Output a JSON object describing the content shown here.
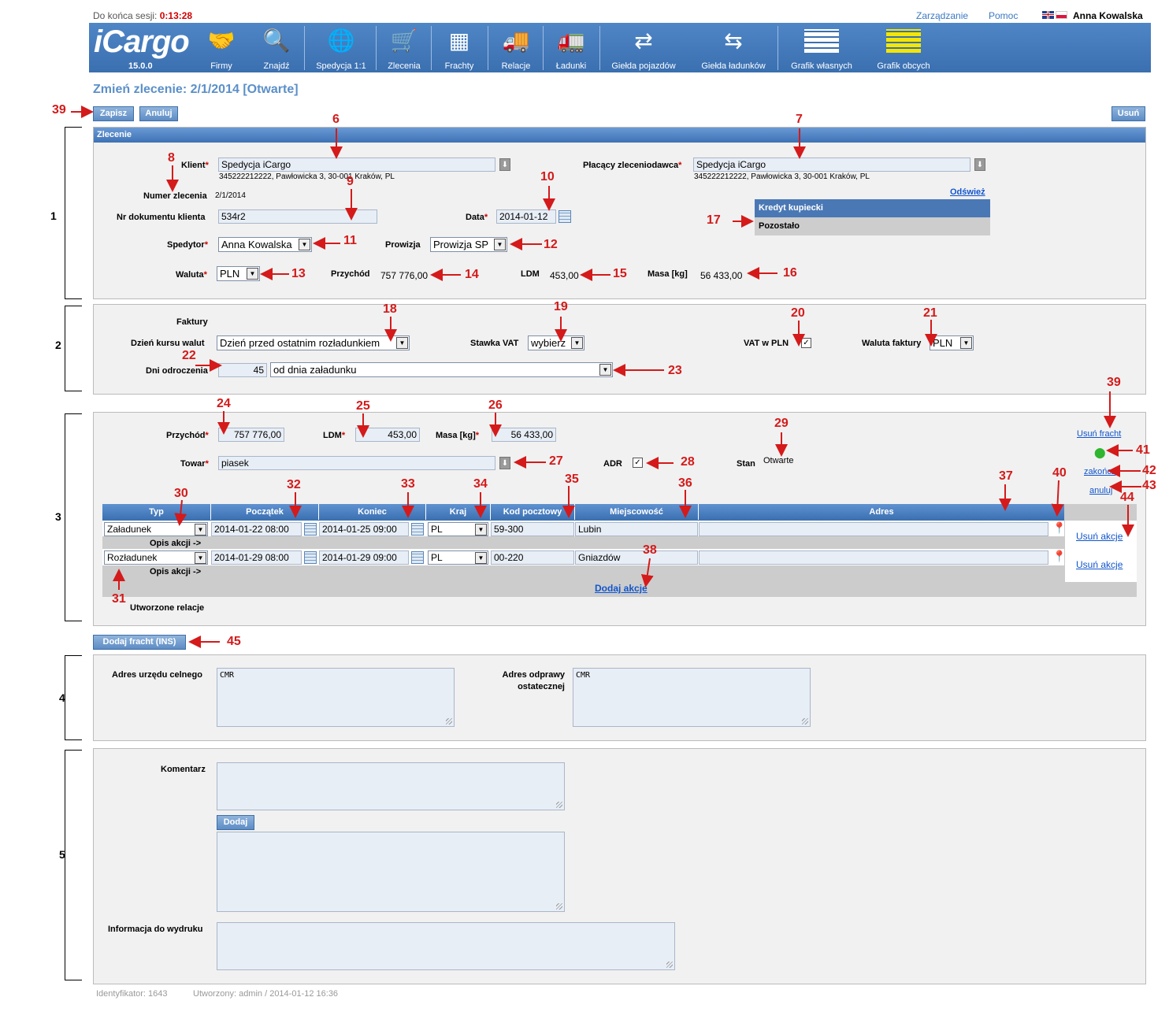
{
  "session": {
    "label": "Do końca sesji:",
    "time": "0:13:28"
  },
  "toplinks": {
    "management": "Zarządzanie",
    "help": "Pomoc",
    "user": "Anna Kowalska"
  },
  "brand": {
    "logo": "iCargo",
    "version": "15.0.0"
  },
  "nav": [
    {
      "label": "Firmy",
      "icon": "handshake-icon"
    },
    {
      "label": "Znajdź",
      "icon": "magnifier-icon"
    },
    {
      "label": "Spedycja 1:1",
      "icon": "globe-icon"
    },
    {
      "label": "Zlecenia",
      "icon": "cart-icon"
    },
    {
      "label": "Frachty",
      "icon": "trolley-icon"
    },
    {
      "label": "Relacje",
      "icon": "truck-icon"
    },
    {
      "label": "Ładunki",
      "icon": "loaded-truck-icon"
    },
    {
      "label": "Giełda pojazdów",
      "icon": "vehicle-exchange-icon"
    },
    {
      "label": "Giełda ładunków",
      "icon": "cargo-exchange-icon"
    },
    {
      "label": "Grafik własnych",
      "icon": "own-schedule-icon"
    },
    {
      "label": "Grafik obcych",
      "icon": "foreign-schedule-icon"
    }
  ],
  "page_title": "Zmień zlecenie: 2/1/2014 [Otwarte]",
  "buttons": {
    "save": "Zapisz",
    "cancel": "Anuluj",
    "delete": "Usuń",
    "add_freight": "Dodaj fracht (INS)",
    "add_comment": "Dodaj"
  },
  "order": {
    "section_title": "Zlecenie",
    "client_label": "Klient",
    "client": "Spedycja iCargo",
    "client_address": "345222212222, Pawłowicka 3, 30-001 Kraków, PL",
    "payer_label": "Płacący zleceniodawca",
    "payer": "Spedycja iCargo",
    "payer_address": "345222212222, Pawłowicka 3, 30-001 Kraków, PL",
    "order_no_label": "Numer zlecenia",
    "order_no": "2/1/2014",
    "refresh": "Odśwież",
    "client_doc_label": "Nr dokumentu klienta",
    "client_doc": "534r2",
    "date_label": "Data",
    "date": "2014-01-12",
    "credit_title": "Kredyt kupiecki",
    "credit_left": "Pozostało",
    "forwarder_label": "Spedytor",
    "forwarder": "Anna Kowalska",
    "commission_label": "Prowizja",
    "commission": "Prowizja SP",
    "currency_label": "Waluta",
    "currency": "PLN",
    "income_label": "Przychód",
    "income": "757 776,00",
    "ldm_label": "LDM",
    "ldm": "453,00",
    "mass_label": "Masa [kg]",
    "mass": "56 433,00"
  },
  "invoices": {
    "title": "Faktury",
    "rate_day_label": "Dzień kursu walut",
    "rate_day": "Dzień przed ostatnim rozładunkiem",
    "vat_rate_label": "Stawka VAT",
    "vat_rate": "wybierz",
    "vat_pln_label": "VAT w PLN",
    "invoice_currency_label": "Waluta faktury",
    "invoice_currency": "PLN",
    "deferral_label": "Dni odroczenia",
    "deferral_days": "45",
    "deferral_from": "od dnia załadunku"
  },
  "freight": {
    "income_label": "Przychód",
    "income": "757 776,00",
    "ldm_label": "LDM",
    "ldm": "453,00",
    "mass_label": "Masa [kg]",
    "mass": "56 433,00",
    "goods_label": "Towar",
    "goods": "piasek",
    "adr_label": "ADR",
    "state_label": "Stan",
    "state": "Otwarte",
    "delete_freight": "Usuń fracht",
    "finish": "zakończ",
    "cancel": "anuluj",
    "columns": [
      "Typ",
      "Początek",
      "Koniec",
      "Kraj",
      "Kod pocztowy",
      "Miejscowość",
      "Adres"
    ],
    "rows": [
      {
        "type": "Załadunek",
        "start": "2014-01-22 08:00",
        "end": "2014-01-25 09:00",
        "country": "PL",
        "zip": "59-300",
        "city": "Lubin",
        "address": "",
        "desc": "Opis akcji ->",
        "delete": "Usuń akcje"
      },
      {
        "type": "Rozładunek",
        "start": "2014-01-29 08:00",
        "end": "2014-01-29 09:00",
        "country": "PL",
        "zip": "00-220",
        "city": "Gniazdów",
        "address": "",
        "desc": "Opis akcji ->",
        "delete": "Usuń akcje"
      }
    ],
    "add_action": "Dodaj akcje",
    "created_relations": "Utworzone relacje"
  },
  "customs": {
    "office_label": "Adres urzędu celnego",
    "office": "CMR",
    "final_label_1": "Adres odprawy",
    "final_label_2": "ostatecznej",
    "final": "CMR"
  },
  "comments": {
    "comment_label": "Komentarz",
    "print_label": "Informacja do wydruku"
  },
  "footer": {
    "id": "Identyfikator: 1643",
    "created": "Utworzony: admin / 2014-01-12 16:36"
  },
  "sections": [
    "1",
    "2",
    "3",
    "4",
    "5"
  ],
  "annotations": [
    "39",
    "6",
    "7",
    "8",
    "9",
    "10",
    "11",
    "12",
    "13",
    "14",
    "15",
    "16",
    "17",
    "18",
    "19",
    "20",
    "21",
    "22",
    "23",
    "24",
    "25",
    "26",
    "27",
    "28",
    "29",
    "39",
    "41",
    "42",
    "43",
    "30",
    "32",
    "33",
    "34",
    "35",
    "36",
    "37",
    "40",
    "44",
    "38",
    "31",
    "45"
  ]
}
